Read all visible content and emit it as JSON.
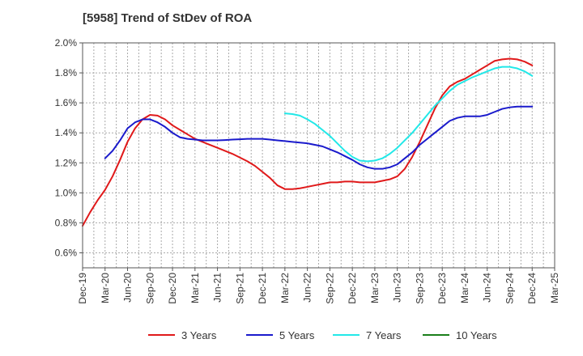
{
  "chart_data": {
    "type": "line",
    "title": "[5958]  Trend of StDev of ROA",
    "xlabel": "",
    "ylabel": "",
    "ylim": [
      0.5,
      2.0
    ],
    "y_ticks": [
      0.6,
      0.8,
      1.0,
      1.2,
      1.4,
      1.6,
      1.8,
      2.0
    ],
    "y_tick_labels": [
      "0.6%",
      "0.8%",
      "1.0%",
      "1.2%",
      "1.4%",
      "1.6%",
      "1.8%",
      "2.0%"
    ],
    "x_tick_labels": [
      "Dec-19",
      "Mar-20",
      "Jun-20",
      "Sep-20",
      "Dec-20",
      "Mar-21",
      "Jun-21",
      "Sep-21",
      "Dec-21",
      "Mar-22",
      "Jun-22",
      "Sep-22",
      "Dec-22",
      "Mar-23",
      "Jun-23",
      "Sep-23",
      "Dec-23",
      "Mar-24",
      "Jun-24",
      "Sep-24",
      "Dec-24",
      "Mar-25"
    ],
    "grid": true,
    "legend_position": "bottom",
    "series": [
      {
        "name": "3 Years",
        "color": "#e0191a",
        "points": [
          [
            "Dec-19",
            0.78
          ],
          [
            "Jan-20",
            0.87
          ],
          [
            "Feb-20",
            0.95
          ],
          [
            "Mar-20",
            1.02
          ],
          [
            "Apr-20",
            1.11
          ],
          [
            "May-20",
            1.22
          ],
          [
            "Jun-20",
            1.34
          ],
          [
            "Jul-20",
            1.43
          ],
          [
            "Aug-20",
            1.49
          ],
          [
            "Sep-20",
            1.52
          ],
          [
            "Oct-20",
            1.515
          ],
          [
            "Nov-20",
            1.49
          ],
          [
            "Dec-20",
            1.45
          ],
          [
            "Jan-21",
            1.42
          ],
          [
            "Feb-21",
            1.39
          ],
          [
            "Mar-21",
            1.36
          ],
          [
            "Apr-21",
            1.34
          ],
          [
            "May-21",
            1.32
          ],
          [
            "Jun-21",
            1.3
          ],
          [
            "Jul-21",
            1.28
          ],
          [
            "Aug-21",
            1.26
          ],
          [
            "Sep-21",
            1.235
          ],
          [
            "Oct-21",
            1.21
          ],
          [
            "Nov-21",
            1.18
          ],
          [
            "Dec-21",
            1.14
          ],
          [
            "Jan-22",
            1.1
          ],
          [
            "Feb-22",
            1.05
          ],
          [
            "Mar-22",
            1.025
          ],
          [
            "Apr-22",
            1.025
          ],
          [
            "May-22",
            1.03
          ],
          [
            "Jun-22",
            1.04
          ],
          [
            "Jul-22",
            1.05
          ],
          [
            "Aug-22",
            1.06
          ],
          [
            "Sep-22",
            1.07
          ],
          [
            "Oct-22",
            1.07
          ],
          [
            "Nov-22",
            1.075
          ],
          [
            "Dec-22",
            1.075
          ],
          [
            "Jan-23",
            1.07
          ],
          [
            "Feb-23",
            1.07
          ],
          [
            "Mar-23",
            1.07
          ],
          [
            "Apr-23",
            1.08
          ],
          [
            "May-23",
            1.09
          ],
          [
            "Jun-23",
            1.11
          ],
          [
            "Jul-23",
            1.16
          ],
          [
            "Aug-23",
            1.24
          ],
          [
            "Sep-23",
            1.34
          ],
          [
            "Oct-23",
            1.45
          ],
          [
            "Nov-23",
            1.56
          ],
          [
            "Dec-23",
            1.65
          ],
          [
            "Jan-24",
            1.71
          ],
          [
            "Feb-24",
            1.74
          ],
          [
            "Mar-24",
            1.76
          ],
          [
            "Apr-24",
            1.79
          ],
          [
            "May-24",
            1.82
          ],
          [
            "Jun-24",
            1.85
          ],
          [
            "Jul-24",
            1.88
          ],
          [
            "Aug-24",
            1.89
          ],
          [
            "Sep-24",
            1.895
          ],
          [
            "Oct-24",
            1.89
          ],
          [
            "Nov-24",
            1.875
          ],
          [
            "Dec-24",
            1.85
          ]
        ]
      },
      {
        "name": "5 Years",
        "color": "#1a1acc",
        "points": [
          [
            "Mar-20",
            1.23
          ],
          [
            "Apr-20",
            1.28
          ],
          [
            "May-20",
            1.35
          ],
          [
            "Jun-20",
            1.43
          ],
          [
            "Jul-20",
            1.47
          ],
          [
            "Aug-20",
            1.49
          ],
          [
            "Sep-20",
            1.49
          ],
          [
            "Oct-20",
            1.47
          ],
          [
            "Nov-20",
            1.44
          ],
          [
            "Dec-20",
            1.4
          ],
          [
            "Jan-21",
            1.37
          ],
          [
            "Feb-21",
            1.36
          ],
          [
            "Mar-21",
            1.355
          ],
          [
            "Apr-21",
            1.35
          ],
          [
            "May-21",
            1.35
          ],
          [
            "Jun-21",
            1.35
          ],
          [
            "Jul-21",
            1.352
          ],
          [
            "Aug-21",
            1.355
          ],
          [
            "Sep-21",
            1.357
          ],
          [
            "Oct-21",
            1.36
          ],
          [
            "Nov-21",
            1.36
          ],
          [
            "Dec-21",
            1.36
          ],
          [
            "Jan-22",
            1.355
          ],
          [
            "Feb-22",
            1.35
          ],
          [
            "Mar-22",
            1.345
          ],
          [
            "Apr-22",
            1.34
          ],
          [
            "May-22",
            1.335
          ],
          [
            "Jun-22",
            1.33
          ],
          [
            "Jul-22",
            1.32
          ],
          [
            "Aug-22",
            1.31
          ],
          [
            "Sep-22",
            1.29
          ],
          [
            "Oct-22",
            1.27
          ],
          [
            "Nov-22",
            1.245
          ],
          [
            "Dec-22",
            1.22
          ],
          [
            "Jan-23",
            1.19
          ],
          [
            "Feb-23",
            1.17
          ],
          [
            "Mar-23",
            1.16
          ],
          [
            "Apr-23",
            1.16
          ],
          [
            "May-23",
            1.17
          ],
          [
            "Jun-23",
            1.19
          ],
          [
            "Jul-23",
            1.23
          ],
          [
            "Aug-23",
            1.27
          ],
          [
            "Sep-23",
            1.32
          ],
          [
            "Oct-23",
            1.36
          ],
          [
            "Nov-23",
            1.4
          ],
          [
            "Dec-23",
            1.44
          ],
          [
            "Jan-24",
            1.48
          ],
          [
            "Feb-24",
            1.5
          ],
          [
            "Mar-24",
            1.51
          ],
          [
            "Apr-24",
            1.51
          ],
          [
            "May-24",
            1.51
          ],
          [
            "Jun-24",
            1.52
          ],
          [
            "Jul-24",
            1.54
          ],
          [
            "Aug-24",
            1.56
          ],
          [
            "Sep-24",
            1.57
          ],
          [
            "Oct-24",
            1.575
          ],
          [
            "Nov-24",
            1.575
          ],
          [
            "Dec-24",
            1.575
          ]
        ]
      },
      {
        "name": "7 Years",
        "color": "#22e8e8",
        "points": [
          [
            "Mar-22",
            1.53
          ],
          [
            "Apr-22",
            1.525
          ],
          [
            "May-22",
            1.515
          ],
          [
            "Jun-22",
            1.49
          ],
          [
            "Jul-22",
            1.46
          ],
          [
            "Aug-22",
            1.42
          ],
          [
            "Sep-22",
            1.38
          ],
          [
            "Oct-22",
            1.33
          ],
          [
            "Nov-22",
            1.28
          ],
          [
            "Dec-22",
            1.24
          ],
          [
            "Jan-23",
            1.215
          ],
          [
            "Feb-23",
            1.21
          ],
          [
            "Mar-23",
            1.215
          ],
          [
            "Apr-23",
            1.23
          ],
          [
            "May-23",
            1.26
          ],
          [
            "Jun-23",
            1.3
          ],
          [
            "Jul-23",
            1.35
          ],
          [
            "Aug-23",
            1.4
          ],
          [
            "Sep-23",
            1.46
          ],
          [
            "Oct-23",
            1.52
          ],
          [
            "Nov-23",
            1.58
          ],
          [
            "Dec-23",
            1.63
          ],
          [
            "Jan-24",
            1.68
          ],
          [
            "Feb-24",
            1.72
          ],
          [
            "Mar-24",
            1.745
          ],
          [
            "Apr-24",
            1.77
          ],
          [
            "May-24",
            1.79
          ],
          [
            "Jun-24",
            1.81
          ],
          [
            "Jul-24",
            1.83
          ],
          [
            "Aug-24",
            1.84
          ],
          [
            "Sep-24",
            1.84
          ],
          [
            "Oct-24",
            1.83
          ],
          [
            "Nov-24",
            1.81
          ],
          [
            "Dec-24",
            1.78
          ]
        ]
      },
      {
        "name": "10 Years",
        "color": "#1a7f1a",
        "points": []
      }
    ]
  }
}
